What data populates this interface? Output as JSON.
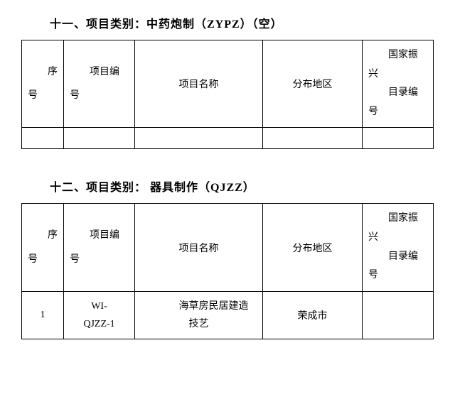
{
  "section1": {
    "title": "十一、项目类别：中药炮制（ZYPZ）（空）",
    "headers": {
      "seq_line1": "序",
      "seq_line2": "号",
      "code_line1": "项目编",
      "code_line2": "号",
      "name": "项目名称",
      "region": "分布地区",
      "catalog_line1": "国家振",
      "catalog_line2": "兴",
      "catalog_line3": "目录编",
      "catalog_line4": "号"
    }
  },
  "section2": {
    "title": "十二、项目类别： 器具制作（QJZZ）",
    "headers": {
      "seq_line1": "序",
      "seq_line2": "号",
      "code_line1": "项目编",
      "code_line2": "号",
      "name": "项目名称",
      "region": "分布地区",
      "catalog_line1": "国家振",
      "catalog_line2": "兴",
      "catalog_line3": "目录编",
      "catalog_line4": "号"
    },
    "rows": [
      {
        "seq": "1",
        "code_line1": "WI-",
        "code_line2": "QJZZ-1",
        "name_line1": "海草房民居建造",
        "name_line2": "技艺",
        "region": "荣成市",
        "catalog": ""
      }
    ]
  },
  "styling": {
    "border_color": "#000000",
    "background_color": "#ffffff",
    "text_color": "#000000",
    "font_family": "SimSun",
    "title_fontsize": 16,
    "cell_fontsize": 14,
    "watermark_color": "#d0d0d0"
  }
}
